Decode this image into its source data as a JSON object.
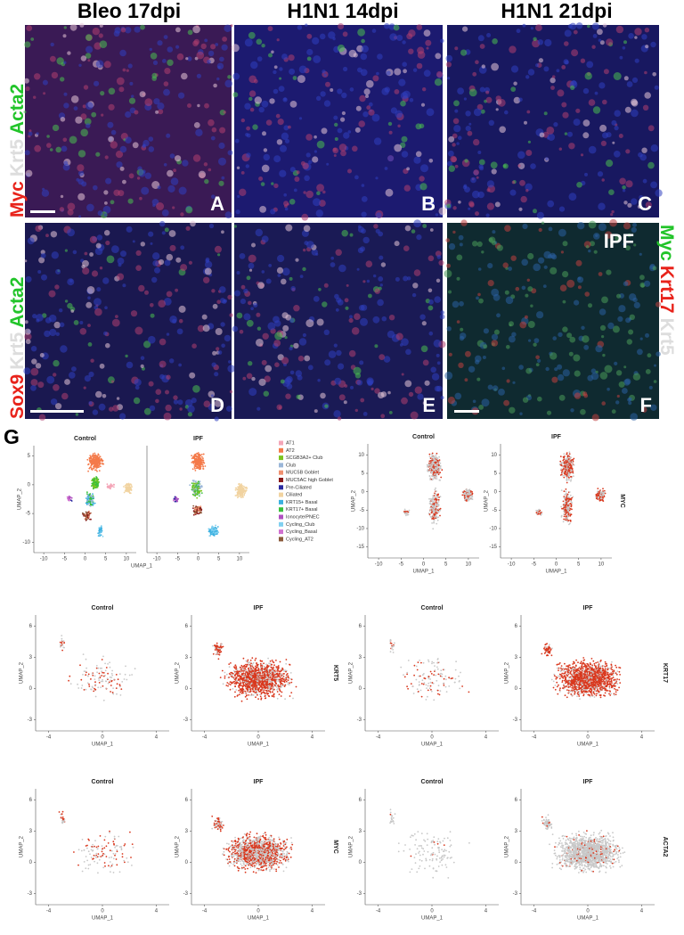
{
  "figure": {
    "column_headers": [
      "Bleo 17dpi",
      "H1N1 14dpi",
      "H1N1 21dpi"
    ],
    "row_labels": [
      {
        "markers": [
          {
            "text": "Myc",
            "color": "#e8231b"
          },
          {
            "text": "Krt5",
            "color": "#dddddd"
          },
          {
            "text": "Acta2",
            "color": "#22c42a"
          }
        ]
      },
      {
        "markers": [
          {
            "text": "Sox9",
            "color": "#e8231b"
          },
          {
            "text": "Krt5",
            "color": "#dddddd"
          },
          {
            "text": "Acta2",
            "color": "#22c42a"
          }
        ]
      }
    ],
    "right_label": {
      "markers": [
        {
          "text": "Myc",
          "color": "#22c42a"
        },
        {
          "text": "Krt17",
          "color": "#e8231b"
        },
        {
          "text": "Krt5",
          "color": "#dddddd"
        }
      ]
    },
    "panels": [
      "A",
      "B",
      "C",
      "D",
      "E",
      "F"
    ],
    "panel_f_note": "IPF",
    "g_letter": "G",
    "legend": [
      {
        "name": "AT1",
        "color": "#f4a6b8"
      },
      {
        "name": "AT2",
        "color": "#f47a4a"
      },
      {
        "name": "SCGB3A2+ Club",
        "color": "#7cc520"
      },
      {
        "name": "Club",
        "color": "#9ab6d8"
      },
      {
        "name": "MUC5B Goblet",
        "color": "#f09070"
      },
      {
        "name": "MUC5AC high Goblet",
        "color": "#8b1a1a"
      },
      {
        "name": "Pre-Ciliated",
        "color": "#2a2aa0"
      },
      {
        "name": "Ciliated",
        "color": "#f1d3a0"
      },
      {
        "name": "KRT15+ Basal",
        "color": "#3bb0e0"
      },
      {
        "name": "KRT17+ Basal",
        "color": "#3ac03a"
      },
      {
        "name": "Ionocyte/PNEC",
        "color": "#b050c0"
      },
      {
        "name": "Cycling_Club",
        "color": "#80d0f0"
      },
      {
        "name": "Cycling_Basal",
        "color": "#d070d0"
      },
      {
        "name": "Cycling_AT2",
        "color": "#8b5a3a"
      }
    ],
    "umap_plots": [
      {
        "title": "Control",
        "x_label": "UMAP_1",
        "y_label": "UMAP_2",
        "xticks": [
          -10,
          -5,
          0,
          5,
          10
        ],
        "yticks": [
          5,
          0,
          -5,
          -10
        ]
      },
      {
        "title": "IPF",
        "xticks": [
          -10,
          -5,
          0,
          5,
          10
        ]
      },
      {
        "title": "Control",
        "x_label": "UMAP_1",
        "y_label": "UMAP_2",
        "xticks": [
          -10,
          -5,
          0,
          5,
          10
        ],
        "yticks": [
          10,
          5,
          0,
          -5,
          -10,
          -15
        ]
      },
      {
        "title": "IPF",
        "x_label": "UMAP_1",
        "y_label": "UMAP_2",
        "xticks": [
          -10,
          -5,
          0,
          5,
          10
        ],
        "yticks": [
          10,
          5,
          0,
          -5,
          -10,
          -15
        ],
        "gene": "MYC"
      },
      {
        "title": "Control",
        "x_label": "UMAP_1",
        "y_label": "UMAP_2",
        "xticks": [
          -4,
          0,
          4
        ],
        "yticks": [
          6,
          3,
          0,
          -3
        ]
      },
      {
        "title": "IPF",
        "x_label": "UMAP_1",
        "y_label": "UMAP_2",
        "xticks": [
          -4,
          0,
          4
        ],
        "yticks": [
          6,
          3,
          0,
          -3
        ],
        "gene": "KRT5"
      },
      {
        "title": "Control",
        "x_label": "UMAP_1",
        "y_label": "UMAP_2",
        "xticks": [
          -4,
          0,
          4
        ],
        "yticks": [
          6,
          3,
          0,
          -3
        ]
      },
      {
        "title": "IPF",
        "x_label": "UMAP_1",
        "y_label": "UMAP_2",
        "xticks": [
          -4,
          0,
          4
        ],
        "yticks": [
          6,
          3,
          0,
          -3
        ],
        "gene": "KRT17"
      },
      {
        "title": "Control",
        "x_label": "UMAP_1",
        "y_label": "UMAP_2",
        "xticks": [
          -4,
          0,
          4
        ],
        "yticks": [
          6,
          3,
          0,
          -3
        ]
      },
      {
        "title": "IPF",
        "x_label": "UMAP_1",
        "y_label": "UMAP_2",
        "xticks": [
          -4,
          0,
          4
        ],
        "yticks": [
          6,
          3,
          0,
          -3
        ],
        "gene": "MYC"
      },
      {
        "title": "Control",
        "x_label": "UMAP_1",
        "y_label": "UMAP_2",
        "xticks": [
          -4,
          0,
          4
        ],
        "yticks": [
          6,
          3,
          0,
          -3
        ]
      },
      {
        "title": "IPF",
        "x_label": "UMAP_1",
        "y_label": "UMAP_2",
        "xticks": [
          -4,
          0,
          4
        ],
        "yticks": [
          6,
          3,
          0,
          -3
        ],
        "gene": "ACTA2"
      }
    ]
  }
}
